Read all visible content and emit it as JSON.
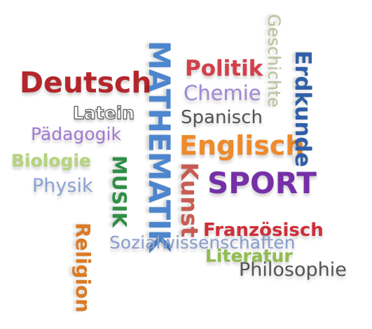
{
  "words": {
    "deutsch": {
      "text": "Deutsch",
      "color": "#b3262b"
    },
    "latein": {
      "text": "Latein",
      "color": "#7a7a7a"
    },
    "paedagogik": {
      "text": "Pädagogik",
      "color": "#a57bd4"
    },
    "biologie": {
      "text": "Biologie",
      "color": "#b6d47c"
    },
    "physik": {
      "text": "Physik",
      "color": "#8fa4d6"
    },
    "politik": {
      "text": "Politik",
      "color": "#d3404a"
    },
    "chemie": {
      "text": "Chemie",
      "color": "#a18ad6"
    },
    "spanisch": {
      "text": "Spanisch",
      "color": "#555555"
    },
    "englisch": {
      "text": "Englisch",
      "color": "#ef8a2b"
    },
    "sport": {
      "text": "SPORT",
      "color": "#7530a8"
    },
    "franzoesisch": {
      "text": "Französisch",
      "color": "#cf2f3a"
    },
    "sozialwissenschaften": {
      "text": "Sozialwissenschaften",
      "color": "#8ba0cf"
    },
    "literatur": {
      "text": "Literatur",
      "color": "#8fbd4e"
    },
    "philosophie": {
      "text": "Philosophie",
      "color": "#555555"
    },
    "mathematik": {
      "text": "MATHEMATIK",
      "color": "#4d86cf"
    },
    "musik": {
      "text": "MUSIK",
      "color": "#2f8f45"
    },
    "kunst": {
      "text": "Kunst",
      "color": "#c95b52"
    },
    "religion": {
      "text": "Religion",
      "color": "#dd7a22"
    },
    "geschichte": {
      "text": "Geschichte",
      "color": "#b8c59c"
    },
    "erdkunde": {
      "text": "Erdkunde",
      "color": "#2f5fa8"
    }
  }
}
